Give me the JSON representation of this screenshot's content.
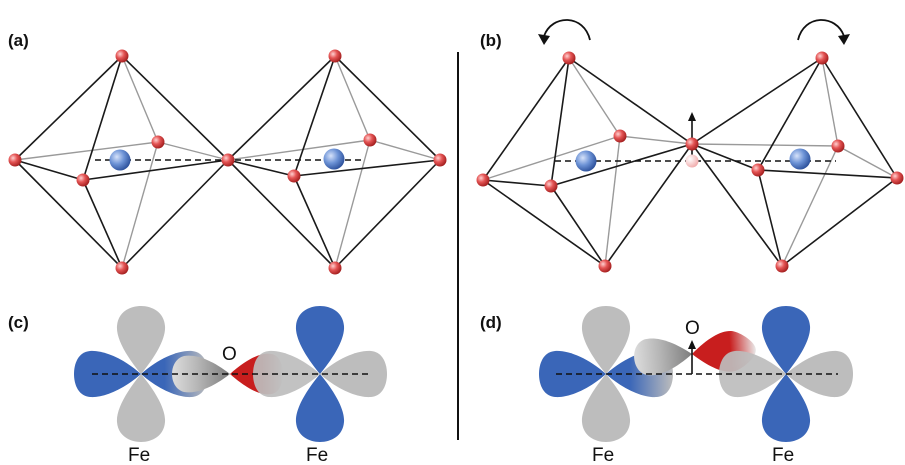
{
  "panels": {
    "a": {
      "label": "(a)"
    },
    "b": {
      "label": "(b)"
    },
    "c": {
      "label": "(c)",
      "oxygen_label": "O",
      "left_metal_label": "Fe",
      "right_metal_label": "Fe"
    },
    "d": {
      "label": "(d)",
      "oxygen_label": "O",
      "left_metal_label": "Fe",
      "right_metal_label": "Fe"
    }
  },
  "colors": {
    "oxygen": "#e04848",
    "iron": "#4a78c8",
    "orbital_blue": "#3a66b8",
    "orbital_gray": "#bdbdbd",
    "orbital_red": "#c81e1e"
  }
}
